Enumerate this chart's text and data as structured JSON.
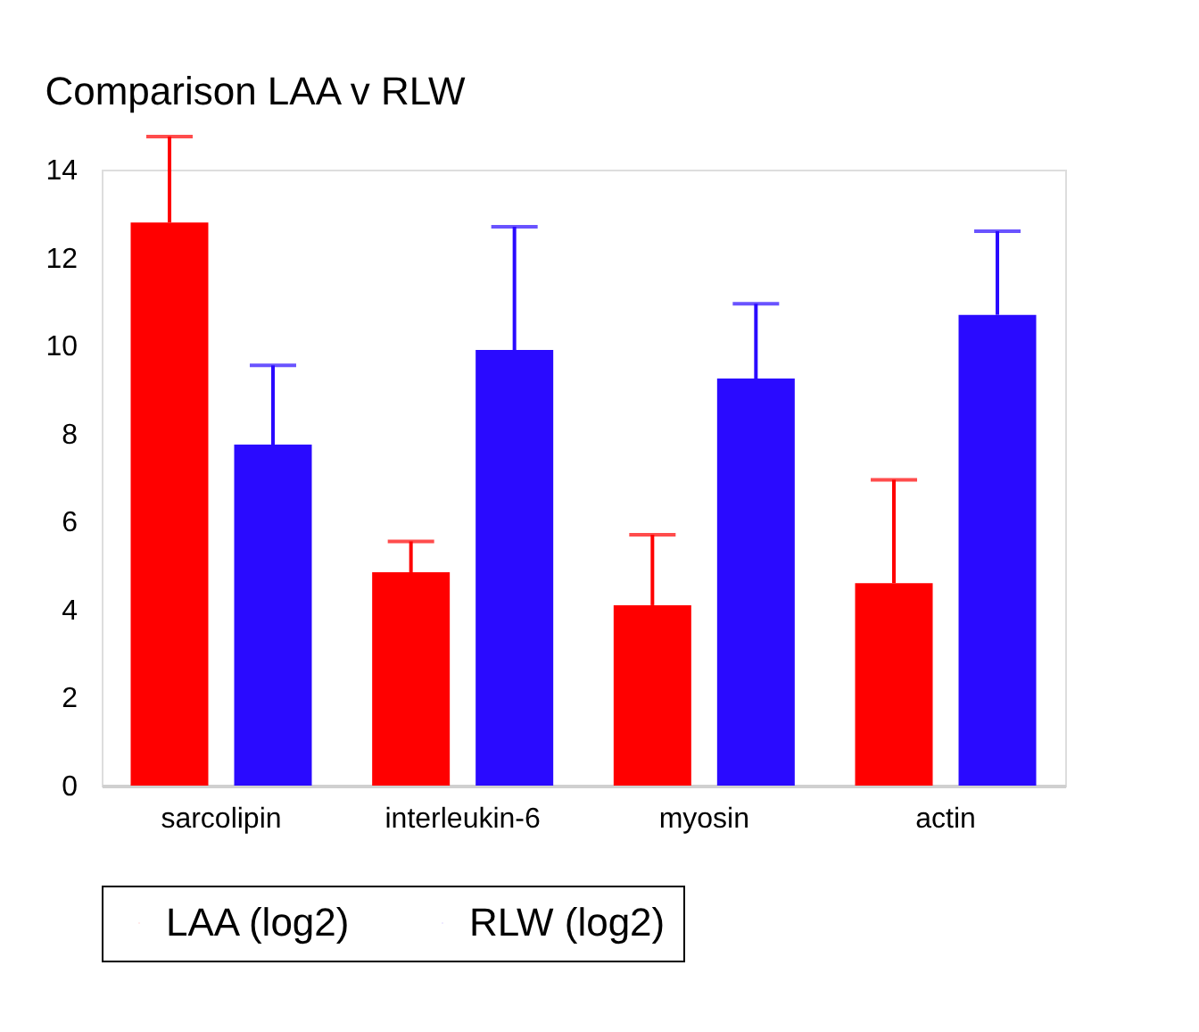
{
  "chart_data": {
    "type": "bar",
    "title": "Comparison LAA v RLW",
    "categories": [
      "sarcolipin",
      "interleukin-6",
      "myosin",
      "actin"
    ],
    "series": [
      {
        "name": "LAA (log2)",
        "color": "#ff0000",
        "values": [
          12.8,
          4.85,
          4.1,
          4.6
        ],
        "errors": [
          [
            12.8,
            14.75
          ],
          [
            4.85,
            5.55
          ],
          [
            4.1,
            5.7
          ],
          [
            4.6,
            6.95
          ]
        ]
      },
      {
        "name": "RLW (log2)",
        "color": "#2a0aff",
        "values": [
          7.75,
          9.9,
          9.25,
          10.7
        ],
        "errors": [
          [
            7.75,
            9.55
          ],
          [
            9.9,
            12.7
          ],
          [
            9.25,
            10.95
          ],
          [
            10.7,
            12.6
          ]
        ]
      }
    ],
    "ylim": [
      0,
      14
    ],
    "yticks": [
      0,
      2,
      4,
      6,
      8,
      10,
      12,
      14
    ],
    "grid": false,
    "legend": "bottom"
  }
}
